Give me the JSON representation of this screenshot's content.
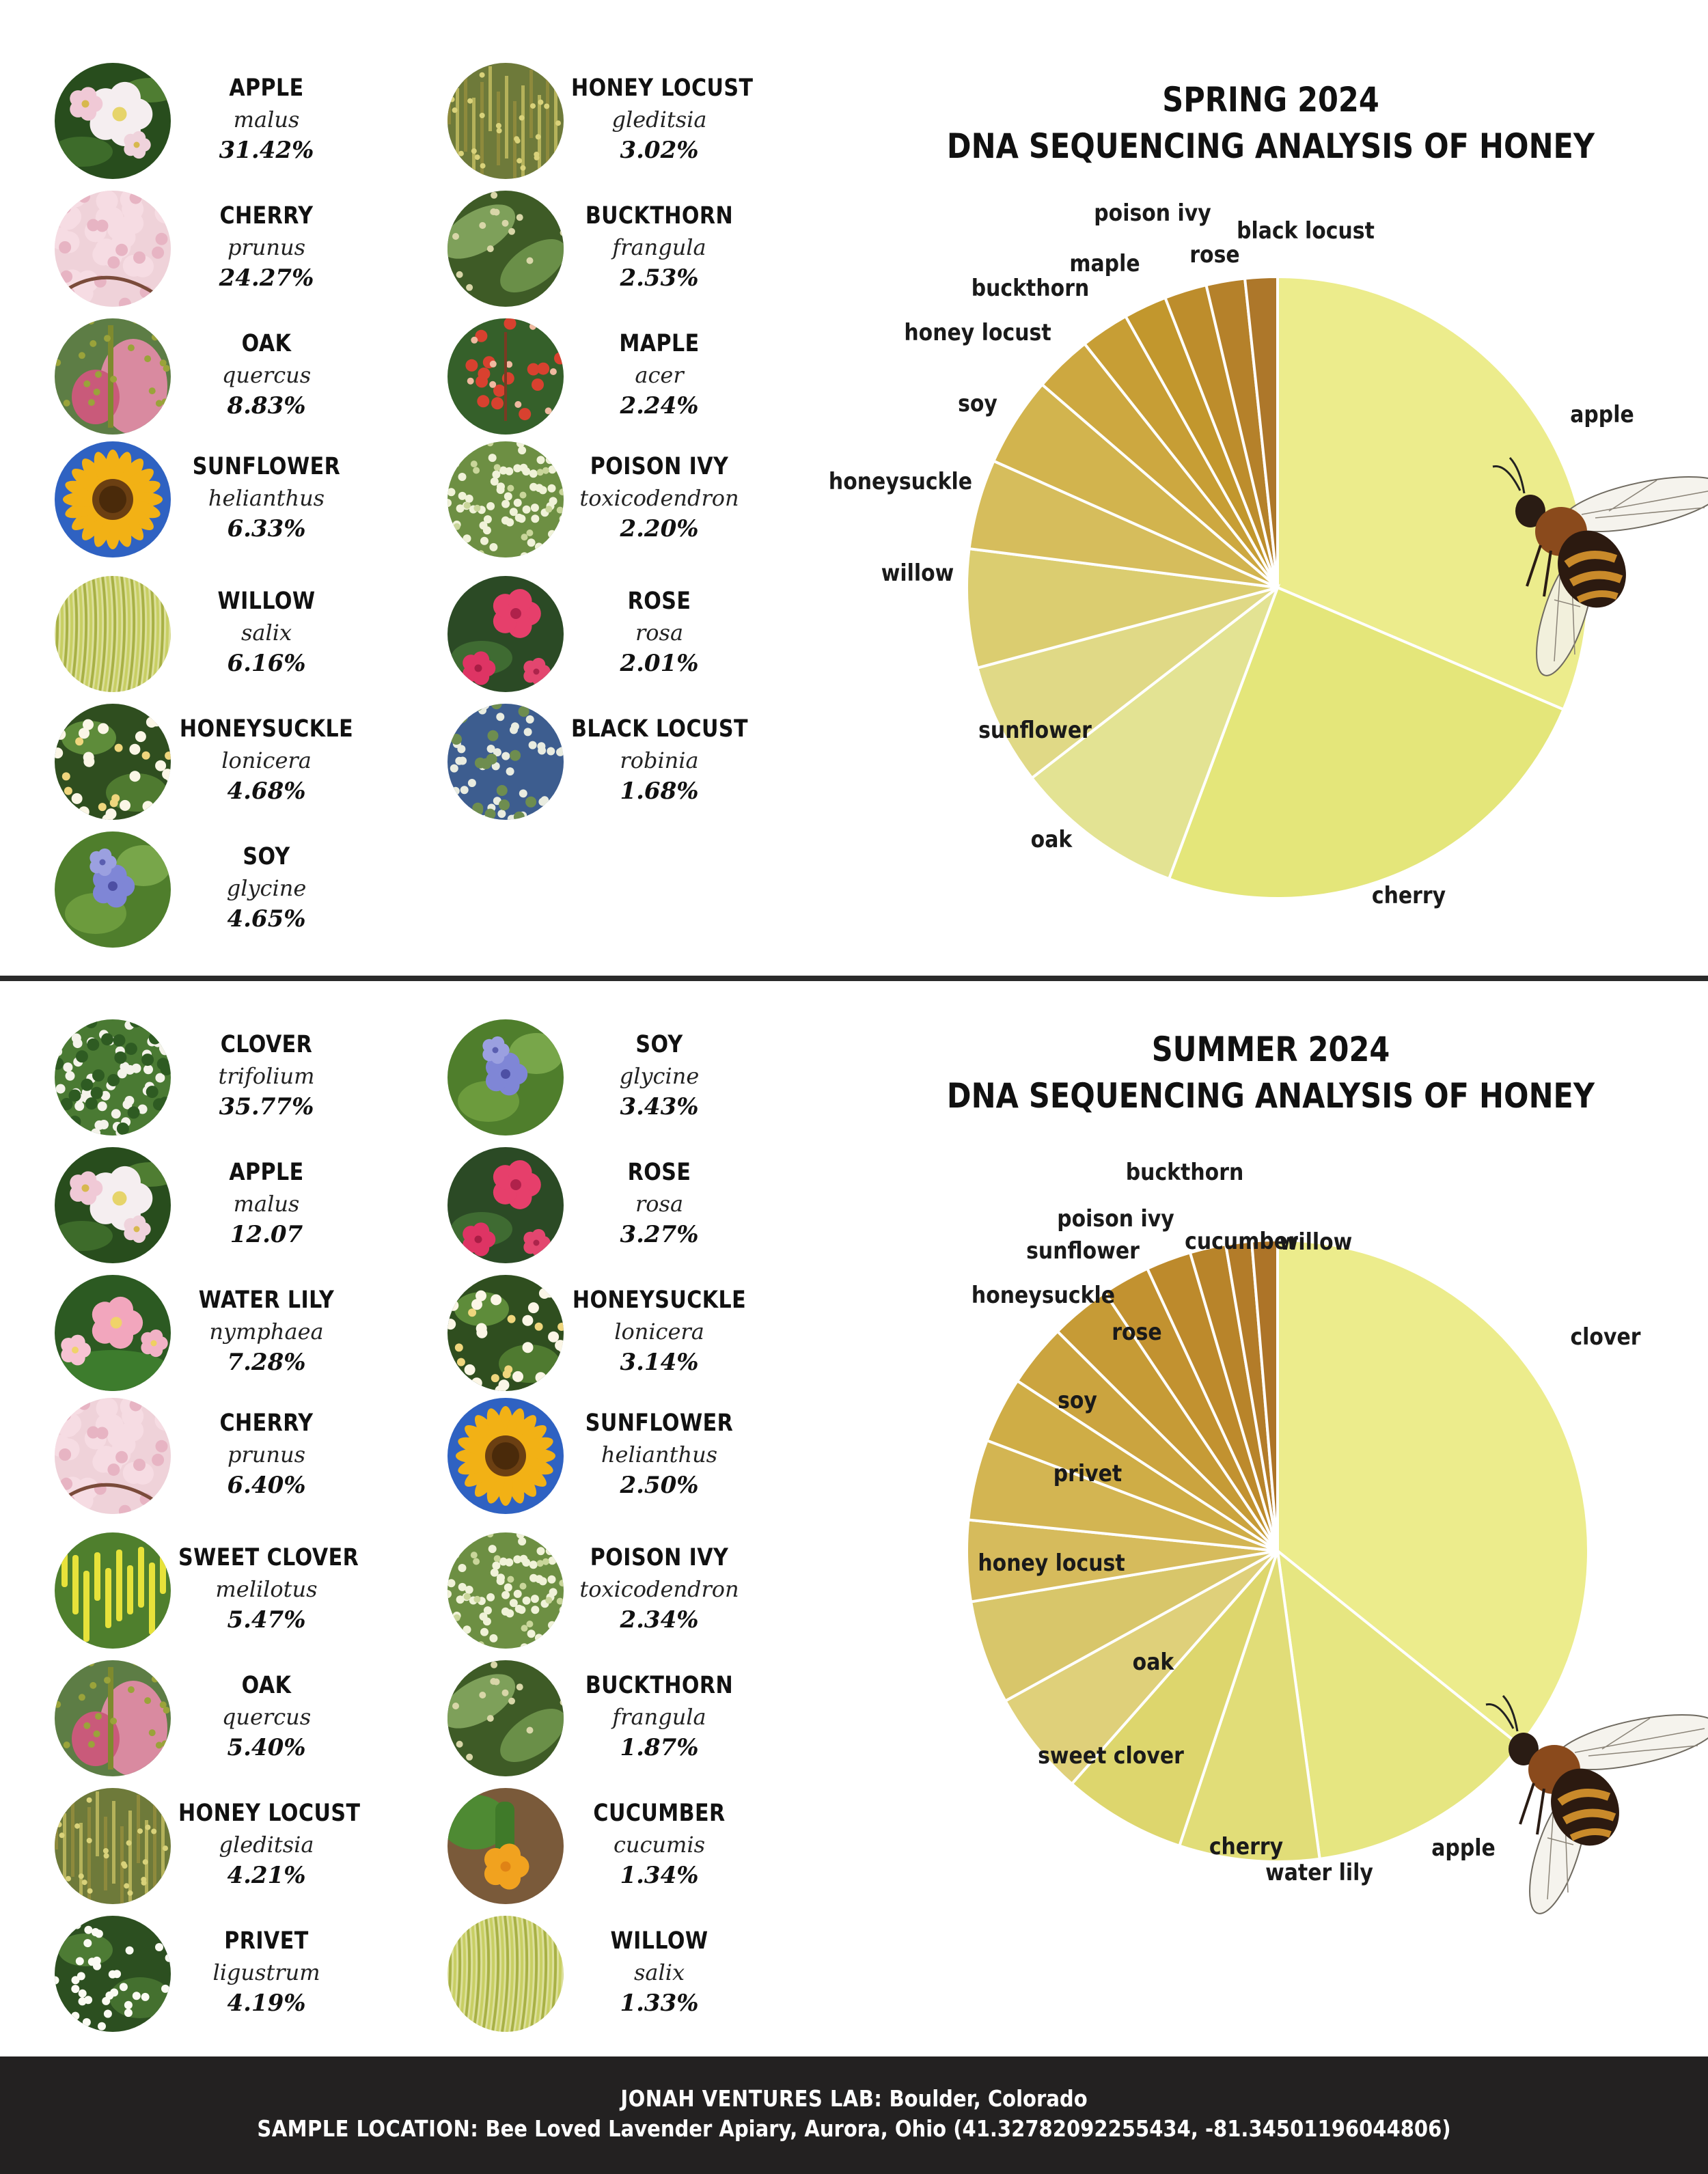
{
  "spring": {
    "title_line1": "SPRING 2024",
    "title_line2": "DNA SEQUENCING ANALYSIS OF HONEY",
    "plants": [
      {
        "name": "APPLE",
        "genus": "malus",
        "percent": "31.42%",
        "icon": "apple-blossom-photo"
      },
      {
        "name": "CHERRY",
        "genus": "prunus",
        "percent": "24.27%",
        "icon": "cherry-blossom-photo"
      },
      {
        "name": "OAK",
        "genus": "quercus",
        "percent": "8.83%",
        "icon": "oak-flower-photo"
      },
      {
        "name": "SUNFLOWER",
        "genus": "helianthus",
        "percent": "6.33%",
        "icon": "sunflower-photo"
      },
      {
        "name": "WILLOW",
        "genus": "salix",
        "percent": "6.16%",
        "icon": "willow-tree-photo"
      },
      {
        "name": "HONEYSUCKLE",
        "genus": "lonicera",
        "percent": "4.68%",
        "icon": "honeysuckle-photo"
      },
      {
        "name": "SOY",
        "genus": "glycine",
        "percent": "4.65%",
        "icon": "soy-flower-photo"
      },
      {
        "name": "HONEY LOCUST",
        "genus": "gleditsia",
        "percent": "3.02%",
        "icon": "honey-locust-photo"
      },
      {
        "name": "BUCKTHORN",
        "genus": "frangula",
        "percent": "2.53%",
        "icon": "buckthorn-photo"
      },
      {
        "name": "MAPLE",
        "genus": "acer",
        "percent": "2.24%",
        "icon": "maple-flower-photo"
      },
      {
        "name": "POISON IVY",
        "genus": "toxicodendron",
        "percent": "2.20%",
        "icon": "poison-ivy-photo"
      },
      {
        "name": "ROSE",
        "genus": "rosa",
        "percent": "2.01%",
        "icon": "rose-photo"
      },
      {
        "name": "BLACK LOCUST",
        "genus": "robinia",
        "percent": "1.68%",
        "icon": "black-locust-photo"
      }
    ]
  },
  "summer": {
    "title_line1": "SUMMER 2024",
    "title_line2": "DNA SEQUENCING ANALYSIS OF HONEY",
    "plants": [
      {
        "name": "CLOVER",
        "genus": "trifolium",
        "percent": "35.77%",
        "icon": "clover-photo"
      },
      {
        "name": "APPLE",
        "genus": "malus",
        "percent": "12.07",
        "icon": "apple-blossom-photo"
      },
      {
        "name": "WATER LILY",
        "genus": "nymphaea",
        "percent": "7.28%",
        "icon": "water-lily-photo"
      },
      {
        "name": "CHERRY",
        "genus": "prunus",
        "percent": "6.40%",
        "icon": "cherry-blossom-photo"
      },
      {
        "name": "SWEET CLOVER",
        "genus": "melilotus",
        "percent": "5.47%",
        "icon": "sweet-clover-photo"
      },
      {
        "name": "OAK",
        "genus": "quercus",
        "percent": "5.40%",
        "icon": "oak-flower-photo"
      },
      {
        "name": "HONEY LOCUST",
        "genus": "gleditsia",
        "percent": "4.21%",
        "icon": "honey-locust-photo"
      },
      {
        "name": "PRIVET",
        "genus": "ligustrum",
        "percent": "4.19%",
        "icon": "privet-photo"
      },
      {
        "name": "SOY",
        "genus": "glycine",
        "percent": "3.43%",
        "icon": "soy-flower-photo"
      },
      {
        "name": "ROSE",
        "genus": "rosa",
        "percent": "3.27%",
        "icon": "rose-photo"
      },
      {
        "name": "HONEYSUCKLE",
        "genus": "lonicera",
        "percent": "3.14%",
        "icon": "honeysuckle-photo"
      },
      {
        "name": "SUNFLOWER",
        "genus": "helianthus",
        "percent": "2.50%",
        "icon": "sunflower-photo"
      },
      {
        "name": "POISON IVY",
        "genus": "toxicodendron",
        "percent": "2.34%",
        "icon": "poison-ivy-photo"
      },
      {
        "name": "BUCKTHORN",
        "genus": "frangula",
        "percent": "1.87%",
        "icon": "buckthorn-photo"
      },
      {
        "name": "CUCUMBER",
        "genus": "cucumis",
        "percent": "1.34%",
        "icon": "cucumber-flower-photo"
      },
      {
        "name": "WILLOW",
        "genus": "salix",
        "percent": "1.33%",
        "icon": "willow-tree-photo"
      }
    ]
  },
  "chart_data": [
    {
      "type": "pie",
      "title": "SPRING 2024 DNA SEQUENCING ANALYSIS OF HONEY",
      "start": "top, clockwise",
      "categories": [
        "apple",
        "cherry",
        "oak",
        "sunflower",
        "willow",
        "honeysuckle",
        "soy",
        "honey locust",
        "buckthorn",
        "maple",
        "poison ivy",
        "rose",
        "black locust"
      ],
      "values": [
        31.42,
        24.27,
        8.83,
        6.33,
        6.16,
        4.68,
        4.65,
        3.02,
        2.53,
        2.24,
        2.2,
        2.01,
        1.68
      ],
      "colors": [
        "#ecec8c",
        "#e4e67a",
        "#e3e393",
        "#e0d986",
        "#dbcd70",
        "#d6bd5c",
        "#d2b44e",
        "#cda840",
        "#c79e35",
        "#c2972d",
        "#bd8d2c",
        "#b5812a",
        "#ad772a"
      ]
    },
    {
      "type": "pie",
      "title": "SUMMER 2024 DNA SEQUENCING ANALYSIS OF HONEY",
      "start": "top, clockwise",
      "categories": [
        "clover",
        "apple",
        "water lily",
        "cherry",
        "sweet clover",
        "oak",
        "honey locust",
        "privet",
        "soy",
        "rose",
        "honeysuckle",
        "sunflower",
        "poison ivy",
        "buckthorn",
        "cucumber",
        "willow"
      ],
      "values": [
        35.77,
        12.07,
        7.28,
        6.4,
        5.47,
        5.4,
        4.21,
        4.19,
        3.43,
        3.27,
        3.14,
        2.5,
        2.34,
        1.87,
        1.34,
        1.33
      ],
      "colors": [
        "#ecec8c",
        "#e6e681",
        "#e1dd78",
        "#ddd66d",
        "#dfd07a",
        "#d8c66a",
        "#d6bb5c",
        "#d3b552",
        "#cfad46",
        "#cba43f",
        "#c69b36",
        "#c29230",
        "#bd8a2c",
        "#b8842a",
        "#b37c29",
        "#ad7428"
      ]
    }
  ],
  "footer": {
    "line1_label": "JONAH VENTURES LAB:",
    "line1_value": "Boulder, Colorado",
    "line2_label": "SAMPLE LOCATION:",
    "line2_value": "Bee Loved Lavender Apiary, Aurora, Ohio  (41.32782092255434, -81.34501196044806)"
  }
}
